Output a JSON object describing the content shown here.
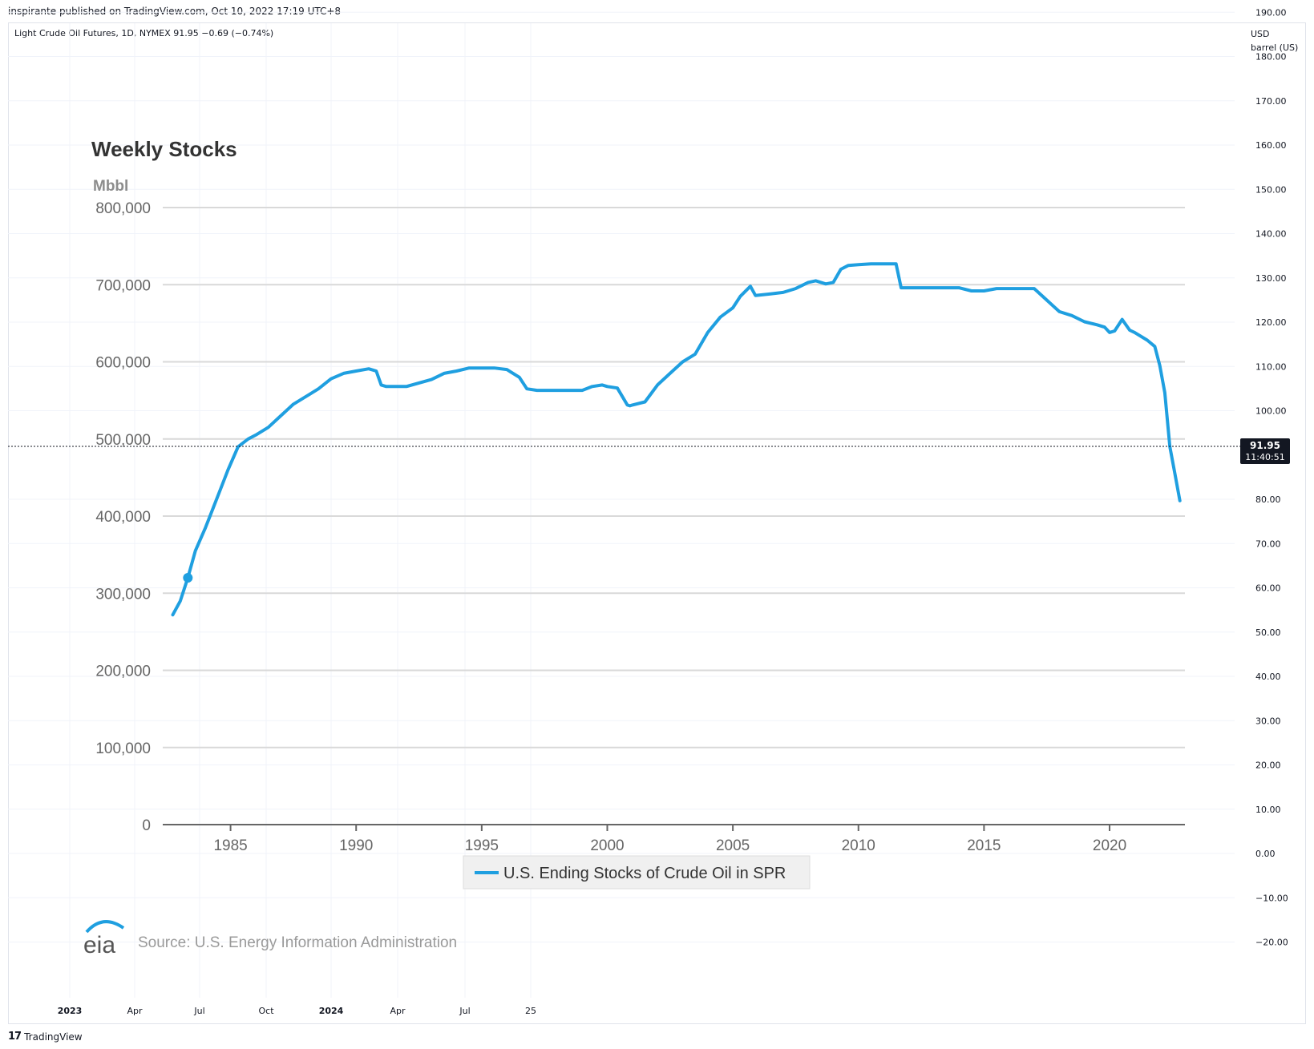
{
  "header": {
    "published": "inspirante published on TradingView.com, Oct 10, 2022 17:19 UTC+8",
    "symbol_line": "Light Crude Oil Futures, 1D, NYMEX  91.95  −0.69 (−0.74%)"
  },
  "price_axis": {
    "unit_line1": "USD",
    "unit_line2": "barrel (US)",
    "ticks": [
      "190.00",
      "180.00",
      "170.00",
      "160.00",
      "150.00",
      "140.00",
      "130.00",
      "120.00",
      "110.00",
      "100.00",
      "80.00",
      "70.00",
      "60.00",
      "50.00",
      "40.00",
      "30.00",
      "20.00",
      "10.00",
      "0.00",
      "−10.00",
      "−20.00"
    ],
    "tick_values": [
      190,
      180,
      170,
      160,
      150,
      140,
      130,
      120,
      110,
      100,
      80,
      70,
      60,
      50,
      40,
      30,
      20,
      10,
      0,
      -10,
      -20
    ],
    "last_price": "91.95",
    "last_price_value": 91.95,
    "countdown": "11:40:51"
  },
  "time_axis": {
    "labels": [
      "2023",
      "Apr",
      "Jul",
      "Oct",
      "2024",
      "Apr",
      "Jul",
      "25"
    ],
    "bold": [
      true,
      false,
      false,
      false,
      true,
      false,
      false,
      false
    ]
  },
  "footer": {
    "brand": "TradingView"
  },
  "colors": {
    "series": "#1f9fe0",
    "grid": "#d9d9d9",
    "tv_grid": "#f0f3fa",
    "badge": "#131722"
  },
  "chart_data": {
    "type": "line",
    "title": "Weekly Stocks",
    "ylabel": "Mbbl",
    "ylim": [
      0,
      800000
    ],
    "yticks": [
      "800,000",
      "700,000",
      "600,000",
      "500,000",
      "400,000",
      "300,000",
      "200,000",
      "100,000",
      "0"
    ],
    "ytick_values": [
      800000,
      700000,
      600000,
      500000,
      400000,
      300000,
      200000,
      100000,
      0
    ],
    "xlim": [
      1982.3,
      2023.0
    ],
    "xticks": [
      "1985",
      "1990",
      "1995",
      "2000",
      "2005",
      "2010",
      "2015",
      "2020"
    ],
    "xtick_values": [
      1985,
      1990,
      1995,
      2000,
      2005,
      2010,
      2015,
      2020
    ],
    "legend": "U.S. Ending Stocks of Crude Oil in SPR",
    "legend_position": "bottom-center",
    "source": "Source: U.S. Energy Information Administration",
    "logo": "eia",
    "grid": true,
    "series": [
      {
        "name": "U.S. Ending Stocks of Crude Oil in SPR",
        "x": [
          1982.7,
          1983.0,
          1983.3,
          1983.6,
          1984.0,
          1984.3,
          1984.6,
          1984.9,
          1985.3,
          1985.7,
          1986.0,
          1986.5,
          1987.0,
          1987.5,
          1988.0,
          1988.5,
          1989.0,
          1989.5,
          1990.0,
          1990.5,
          1990.8,
          1991.0,
          1991.2,
          1992.0,
          1993.0,
          1993.5,
          1994.0,
          1994.5,
          1995.0,
          1995.5,
          1996.0,
          1996.5,
          1996.8,
          1997.2,
          1998.0,
          1999.0,
          1999.4,
          1999.8,
          2000.0,
          2000.4,
          2000.8,
          2000.9,
          2001.0,
          2001.5,
          2002.0,
          2002.5,
          2003.0,
          2003.5,
          2004.0,
          2004.5,
          2005.0,
          2005.3,
          2005.7,
          2005.9,
          2006.5,
          2007.0,
          2007.5,
          2008.0,
          2008.3,
          2008.7,
          2009.0,
          2009.3,
          2009.6,
          2010.0,
          2010.5,
          2011.0,
          2011.5,
          2011.7,
          2012.0,
          2013.0,
          2014.0,
          2014.5,
          2015.0,
          2015.5,
          2016.0,
          2017.0,
          2017.5,
          2018.0,
          2018.5,
          2019.0,
          2019.5,
          2019.8,
          2020.0,
          2020.2,
          2020.5,
          2020.8,
          2021.0,
          2021.5,
          2021.8,
          2022.0,
          2022.2,
          2022.4,
          2022.6,
          2022.8
        ],
        "values": [
          272000,
          290000,
          320000,
          355000,
          385000,
          410000,
          435000,
          460000,
          490000,
          500000,
          505000,
          515000,
          530000,
          545000,
          555000,
          565000,
          578000,
          585000,
          588000,
          591000,
          588000,
          570000,
          568000,
          568000,
          577000,
          585000,
          588000,
          592000,
          592000,
          592000,
          590000,
          580000,
          565000,
          563000,
          563000,
          563000,
          568000,
          570000,
          568000,
          566000,
          544000,
          543000,
          544000,
          548000,
          570000,
          585000,
          600000,
          610000,
          638000,
          658000,
          670000,
          685000,
          698000,
          686000,
          688000,
          690000,
          695000,
          703000,
          705000,
          701000,
          703000,
          720000,
          725000,
          726000,
          727000,
          727000,
          727000,
          696000,
          696000,
          696000,
          696000,
          692000,
          692000,
          695000,
          695000,
          695000,
          680000,
          665000,
          660000,
          652000,
          648000,
          645000,
          638000,
          640000,
          655000,
          641000,
          638000,
          628000,
          620000,
          595000,
          560000,
          490000,
          455000,
          420000
        ]
      }
    ]
  }
}
